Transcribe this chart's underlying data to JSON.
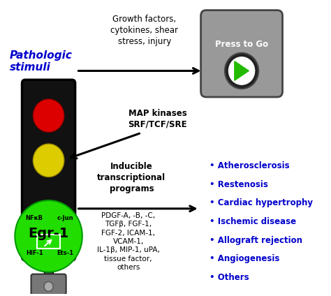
{
  "background_color": "#ffffff",
  "pathologic_stimuli_text": "Pathologic\nstimuli",
  "pathologic_stimuli_color": "#0000cc",
  "growth_factors_text": "Growth factors,\ncytokines, shear\nstress, injury",
  "map_kinases_text": "MAP kinases\nSRF/TCF/SRE",
  "inducible_text": "Inducible\ntranscriptional\nprograms",
  "targets_text": "PDGF-A, -B, -C,\nTGFβ, FGF-1,\nFGF-2, ICAM-1,\nVCAM-1,\nIL-1β, MIP-1, uPA,\ntissue factor,\nothers",
  "diseases": [
    "Atherosclerosis",
    "Restenosis",
    "Cardiac hypertrophy",
    "Ischemic disease",
    "Allograft rejection",
    "Angiogenesis",
    "Others"
  ],
  "disease_color": "#0000cc",
  "egr1_label": "Egr-1",
  "nfkb_label": "NFκB",
  "cjun_label": "c-Jun",
  "hif1_label": "HIF-1",
  "ets1_label": "Ets-1",
  "press_to_go": "Press to Go",
  "tl_body_color": "#111111",
  "red_light_color": "#dd0000",
  "yellow_light_color": "#ddcc00",
  "green_circle_color": "#22dd00",
  "btn_bg_color": "#999999",
  "btn_text_color": "#ffffff"
}
